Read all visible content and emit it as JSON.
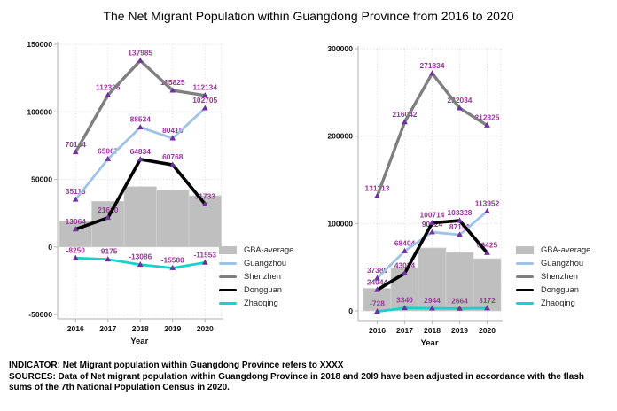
{
  "title": "The Net Migrant Population within Guangdong Province from 2016 to 2020",
  "notes": {
    "indicator": "INDICATOR: Net Migrant population within Guangdong Province refers to XXXX",
    "sources": "SOURCES: Data of Net migrant population within Guangdong Province in 2018 and 20l9 have been adjusted in accordance with the flash sums of the 7th National Population Census in 2020."
  },
  "colors": {
    "gba-average": "#BFBFBF",
    "guangzhou": "#9DC3E6",
    "shenzhen": "#7F7F7F",
    "dongguan": "#000000",
    "zhaoqing": "#16D1CE",
    "data_label": "#98389B",
    "marker": "#7030A0",
    "gridline": "#D9D9D9",
    "axis": "#BFBFBF"
  },
  "chart_data": [
    {
      "type": "bar",
      "subtype": "combo-bar-line",
      "categories": [
        "2016",
        "2017",
        "2018",
        "2019",
        "2020"
      ],
      "xlabel": "Year",
      "ylim": [
        -50000,
        150000
      ],
      "ytick_values": [
        150000,
        100000,
        50000,
        0,
        -50000
      ],
      "ytick_labels": [
        "150000",
        "100000",
        "50000",
        "0",
        "-50000"
      ],
      "grid": "dotted",
      "legend_position": "right",
      "bar_series": {
        "name": "GBA-average",
        "values_are_estimates": true,
        "values": [
          19300,
          33700,
          44600,
          42300,
          37900
        ]
      },
      "series": [
        {
          "name": "Guangzhou",
          "values": [
            35113,
            65067,
            88534,
            80415,
            102705
          ]
        },
        {
          "name": "Shenzhen",
          "values": [
            70144,
            112386,
            137985,
            115825,
            112134
          ]
        },
        {
          "name": "Dongguan",
          "values": [
            13064,
            21620,
            64834,
            60768,
            31733
          ]
        },
        {
          "name": "Zhaoqing",
          "values": [
            -8250,
            -9175,
            -13086,
            -15580,
            -11553
          ]
        }
      ],
      "legend": [
        "GBA-average",
        "Guangzhou",
        "Shenzhen",
        "Dongguan",
        "Zhaoqing"
      ]
    },
    {
      "type": "bar",
      "subtype": "combo-bar-line",
      "categories": [
        "2016",
        "2017",
        "2018",
        "2019",
        "2020"
      ],
      "xlabel": "Year",
      "ylim": [
        0,
        300000
      ],
      "ytick_values": [
        300000,
        200000,
        100000,
        0
      ],
      "ytick_labels": [
        "300000",
        "200000",
        "100000",
        "0"
      ],
      "grid": "dotted",
      "legend_position": "right",
      "bar_series": {
        "name": "GBA-average",
        "values_are_estimates": true,
        "values": [
          25800,
          49400,
          72000,
          66900,
          59800
        ]
      },
      "series": [
        {
          "name": "Guangzhou",
          "values": [
            37380,
            68404,
            90124,
            87151,
            113952
          ]
        },
        {
          "name": "Shenzhen",
          "values": [
            131313,
            216042,
            271834,
            232034,
            212325
          ]
        },
        {
          "name": "Dongguan",
          "values": [
            24044,
            43024,
            100714,
            103328,
            66425
          ]
        },
        {
          "name": "Zhaoqing",
          "values": [
            -728,
            3340,
            2944,
            2664,
            3172
          ]
        }
      ],
      "legend": [
        "GBA-average",
        "Guangzhou",
        "Shenzhen",
        "Dongguan",
        "Zhaoqing"
      ]
    }
  ]
}
